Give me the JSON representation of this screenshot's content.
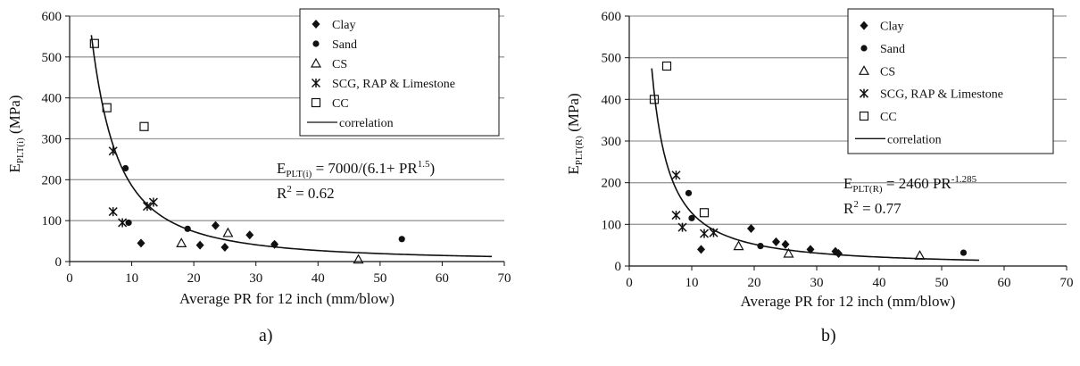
{
  "chart_data": [
    {
      "id": "a",
      "type": "scatter",
      "panel_label": "a)",
      "xlabel": "Average PR for 12 inch (mm/blow)",
      "ylabel": {
        "base": "E",
        "sub": "PLT(i)",
        "unit": " (MPa)"
      },
      "xlim": [
        0,
        70
      ],
      "ylim": [
        0,
        600
      ],
      "xticks": [
        0,
        10,
        20,
        30,
        40,
        50,
        60,
        70
      ],
      "yticks": [
        0,
        100,
        200,
        300,
        400,
        500,
        600
      ],
      "xtick_labels": [
        "0",
        "10",
        "20",
        "30",
        "40",
        "50",
        "60",
        "70"
      ],
      "ytick_labels": [
        "0",
        "100",
        "200",
        "300",
        "400",
        "500",
        "600"
      ],
      "grid": "horizontal",
      "legend_position": "top-right",
      "equation": {
        "base": "E",
        "sub": "PLT(i)",
        "rest": " = 7000/(6.1+ PR",
        "sup": "1.5",
        "tail": ")"
      },
      "r2": {
        "base": "R",
        "sup": "2",
        "rest": " = 0.62"
      },
      "series": [
        {
          "name": "Clay",
          "marker": "diamond",
          "points": [
            [
              11.5,
              45
            ],
            [
              23.5,
              88
            ],
            [
              25,
              35
            ],
            [
              29,
              65
            ],
            [
              33,
              42
            ],
            [
              21,
              40
            ]
          ]
        },
        {
          "name": "Sand",
          "marker": "circle",
          "points": [
            [
              9,
              228
            ],
            [
              9.5,
              95
            ],
            [
              19,
              80
            ],
            [
              33,
              42
            ],
            [
              53.5,
              55
            ]
          ]
        },
        {
          "name": "CS",
          "marker": "triangle",
          "points": [
            [
              18,
              45
            ],
            [
              25.5,
              70
            ],
            [
              46.5,
              5
            ]
          ]
        },
        {
          "name": "SCG, RAP & Limestone",
          "marker": "asterisk",
          "points": [
            [
              7,
              270
            ],
            [
              7,
              122
            ],
            [
              8.5,
              95
            ],
            [
              12.5,
              135
            ],
            [
              13.5,
              145
            ]
          ]
        },
        {
          "name": "CC",
          "marker": "square",
          "points": [
            [
              4,
              533
            ],
            [
              6,
              376
            ],
            [
              12,
              330
            ]
          ]
        },
        {
          "name": "correlation",
          "marker": "line"
        }
      ],
      "correlation": {
        "kind": "ratio",
        "a": 7000,
        "b": 6.1,
        "p": 1.5,
        "xrange": [
          3.5,
          68
        ]
      }
    },
    {
      "id": "b",
      "type": "scatter",
      "panel_label": "b)",
      "xlabel": "Average PR for 12 inch (mm/blow)",
      "ylabel": {
        "base": "E",
        "sub": "PLT(R)",
        "unit": " (MPa)"
      },
      "xlim": [
        0,
        70
      ],
      "ylim": [
        0,
        600
      ],
      "xticks": [
        0,
        10,
        20,
        30,
        40,
        50,
        60,
        70
      ],
      "yticks": [
        0,
        100,
        200,
        300,
        400,
        500,
        600
      ],
      "xtick_labels": [
        "0",
        "10",
        "20",
        "30",
        "40",
        "50",
        "60",
        "70"
      ],
      "ytick_labels": [
        "0",
        "100",
        "200",
        "300",
        "400",
        "500",
        "600"
      ],
      "grid": "horizontal",
      "legend_position": "top-right",
      "equation": {
        "base": "E",
        "sub": "PLT(R)",
        "rest": " = 2460 PR",
        "sup": "-1.285",
        "tail": ""
      },
      "r2": {
        "base": "R",
        "sup": "2",
        "rest": " = 0.77"
      },
      "series": [
        {
          "name": "Clay",
          "marker": "diamond",
          "points": [
            [
              11.5,
              40
            ],
            [
              19.5,
              90
            ],
            [
              23.5,
              58
            ],
            [
              25,
              52
            ],
            [
              29,
              40
            ],
            [
              33,
              35
            ],
            [
              33.5,
              30
            ]
          ]
        },
        {
          "name": "Sand",
          "marker": "circle",
          "points": [
            [
              9.5,
              175
            ],
            [
              10,
              115
            ],
            [
              21,
              48
            ],
            [
              53.5,
              32
            ]
          ]
        },
        {
          "name": "CS",
          "marker": "triangle",
          "points": [
            [
              17.5,
              48
            ],
            [
              25.5,
              30
            ],
            [
              46.5,
              25
            ]
          ]
        },
        {
          "name": "SCG, RAP & Limestone",
          "marker": "asterisk",
          "points": [
            [
              7.5,
              218
            ],
            [
              7.5,
              122
            ],
            [
              8.5,
              93
            ],
            [
              12,
              78
            ],
            [
              13.5,
              80
            ]
          ]
        },
        {
          "name": "CC",
          "marker": "square",
          "points": [
            [
              4,
              400
            ],
            [
              6,
              480
            ],
            [
              12,
              128
            ]
          ]
        },
        {
          "name": "correlation",
          "marker": "line"
        }
      ],
      "correlation": {
        "kind": "power",
        "a": 2460,
        "p": -1.285,
        "xrange": [
          3.6,
          56
        ]
      }
    }
  ]
}
